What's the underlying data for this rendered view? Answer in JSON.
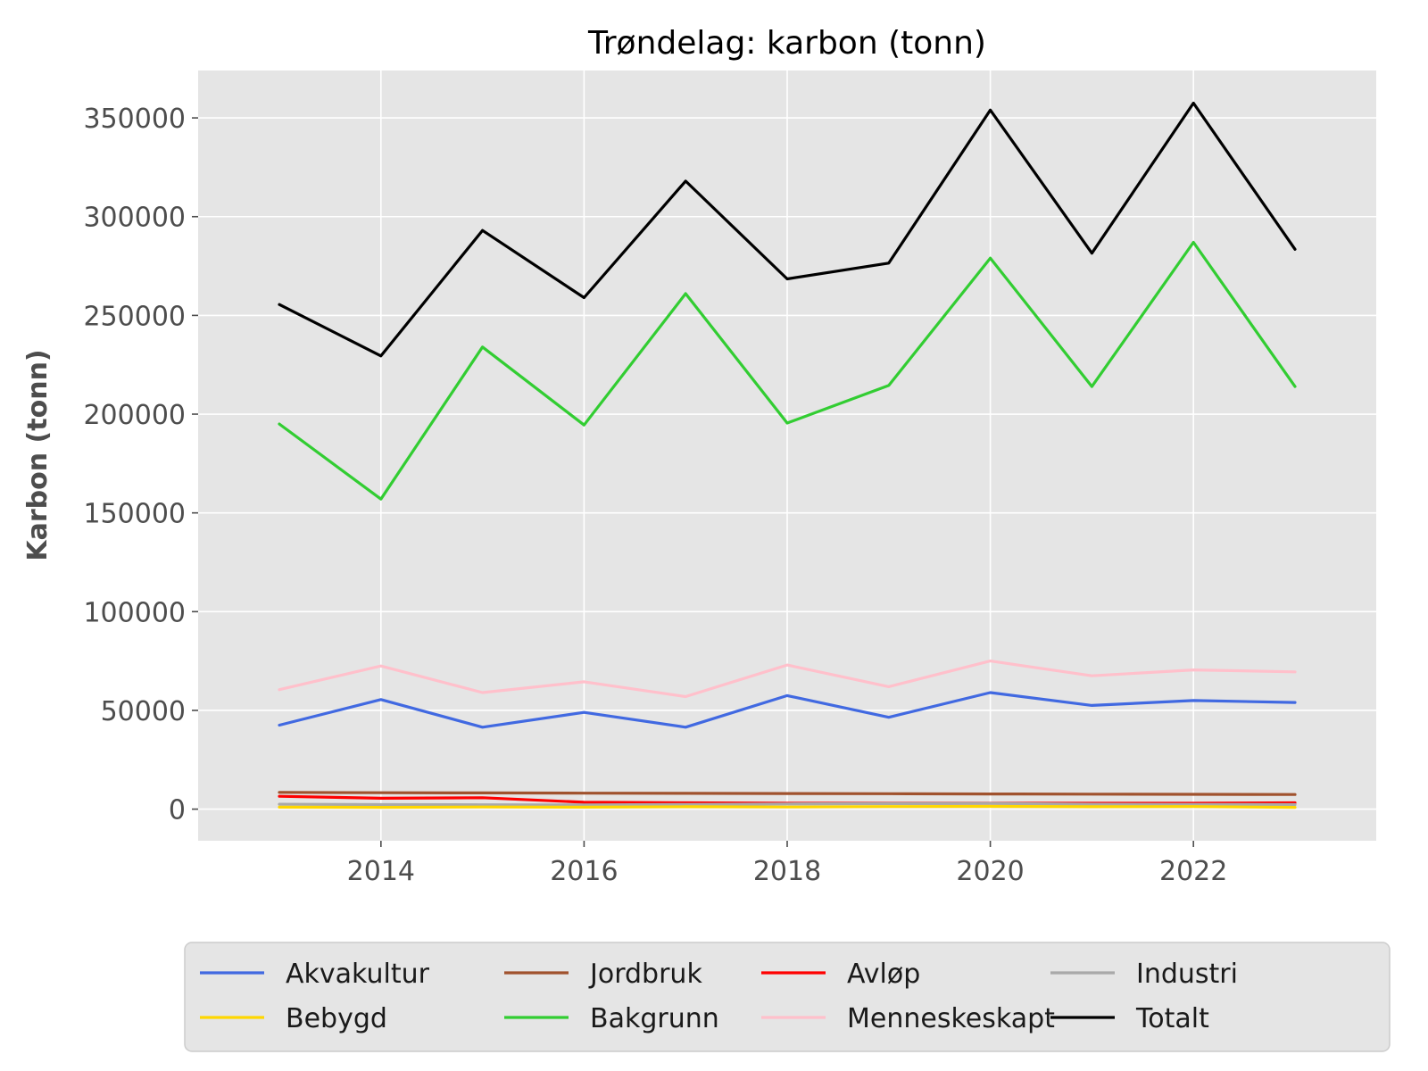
{
  "chart_data": {
    "type": "line",
    "title": "Trøndelag: karbon (tonn)",
    "xlabel": "",
    "ylabel": "Karbon (tonn)",
    "x": [
      2013,
      2014,
      2015,
      2016,
      2017,
      2018,
      2019,
      2020,
      2021,
      2022,
      2023
    ],
    "xlim": [
      2012.2,
      2023.8
    ],
    "ylim": [
      -16000,
      374000
    ],
    "x_ticks": [
      2014,
      2016,
      2018,
      2020,
      2022
    ],
    "x_tick_labels": [
      "2014",
      "2016",
      "2018",
      "2020",
      "2022"
    ],
    "y_ticks": [
      0,
      50000,
      100000,
      150000,
      200000,
      250000,
      300000,
      350000
    ],
    "y_tick_labels": [
      "0",
      "50000",
      "100000",
      "150000",
      "200000",
      "250000",
      "300000",
      "350000"
    ],
    "grid": true,
    "legend_position": "bottom-center",
    "series": [
      {
        "name": "Akvakultur",
        "color": "#4169E1",
        "values": [
          42500,
          55500,
          41500,
          49000,
          41500,
          57500,
          46500,
          59000,
          52500,
          55000,
          54000
        ]
      },
      {
        "name": "Jordbruk",
        "color": "#A0522D",
        "values": [
          8500,
          8300,
          8200,
          8100,
          8000,
          7900,
          7800,
          7700,
          7600,
          7500,
          7400
        ]
      },
      {
        "name": "Avløp",
        "color": "#FF0000",
        "values": [
          6500,
          5500,
          5800,
          3500,
          3200,
          3000,
          3000,
          3000,
          3000,
          3000,
          3200
        ]
      },
      {
        "name": "Industri",
        "color": "#A9A9A9",
        "values": [
          2500,
          2300,
          2200,
          2100,
          2400,
          2600,
          2800,
          2900,
          2500,
          2400,
          2300
        ]
      },
      {
        "name": "Bebygd",
        "color": "#FFD700",
        "values": [
          1000,
          900,
          1100,
          1000,
          1200,
          1100,
          1300,
          1400,
          1200,
          1300,
          900
        ]
      },
      {
        "name": "Bakgrunn",
        "color": "#32CD32",
        "values": [
          195000,
          157000,
          234000,
          194500,
          261000,
          195500,
          214500,
          279000,
          214000,
          287000,
          214000
        ]
      },
      {
        "name": "Menneskeskapt",
        "color": "#FFC0CB",
        "values": [
          60500,
          72500,
          59000,
          64500,
          57000,
          73000,
          62000,
          75000,
          67500,
          70500,
          69500
        ]
      },
      {
        "name": "Totalt",
        "color": "#000000",
        "values": [
          255500,
          229500,
          293000,
          259000,
          318000,
          268500,
          276500,
          354000,
          281500,
          357500,
          283500
        ]
      }
    ]
  }
}
